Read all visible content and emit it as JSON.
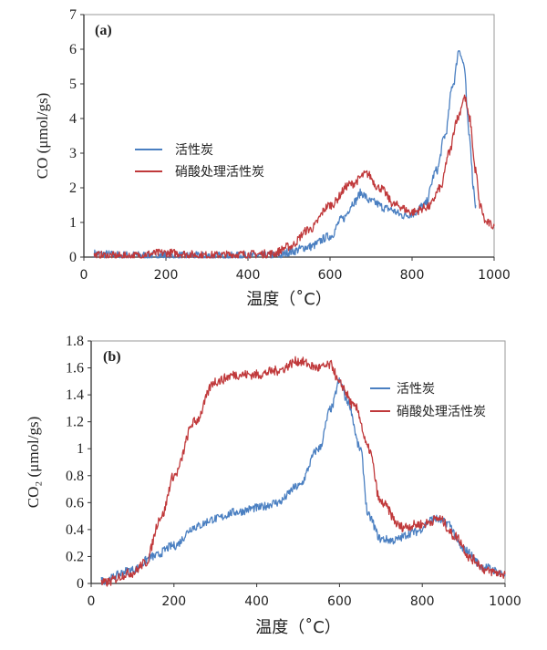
{
  "chart_data": [
    {
      "type": "line",
      "panel_label": "(a)",
      "xlabel": "温度（˚C）",
      "ylabel": "CO (μmol/gs)",
      "xlim": [
        0,
        1000
      ],
      "ylim": [
        0,
        7
      ],
      "xticks": [
        "0",
        "200",
        "400",
        "600",
        "800",
        "1000"
      ],
      "yticks": [
        "0",
        "1",
        "2",
        "3",
        "4",
        "5",
        "6",
        "7"
      ],
      "grid": false,
      "legend_position": "center-left",
      "series": [
        {
          "name": "活性炭",
          "color": "#4a7fc1",
          "x": [
            25,
            100,
            200,
            300,
            400,
            480,
            500,
            550,
            600,
            630,
            660,
            675,
            700,
            740,
            780,
            800,
            830,
            860,
            880,
            900,
            915,
            925,
            940,
            950,
            955
          ],
          "y": [
            0.1,
            0.05,
            0.05,
            0.03,
            0.03,
            0.05,
            0.15,
            0.3,
            0.6,
            1.1,
            1.6,
            1.85,
            1.6,
            1.4,
            1.2,
            1.25,
            1.5,
            2.5,
            3.5,
            5.0,
            6.0,
            5.6,
            3.5,
            2.0,
            1.5
          ]
        },
        {
          "name": "硝酸处理活性炭",
          "color": "#c0393b",
          "x": [
            25,
            100,
            200,
            300,
            400,
            460,
            500,
            550,
            600,
            650,
            690,
            720,
            760,
            800,
            840,
            870,
            890,
            910,
            928,
            940,
            955,
            965,
            980,
            1000
          ],
          "y": [
            0.05,
            0.03,
            0.12,
            0.05,
            0.08,
            0.1,
            0.3,
            0.8,
            1.5,
            2.1,
            2.4,
            2.0,
            1.5,
            1.3,
            1.45,
            2.0,
            3.0,
            4.0,
            4.6,
            4.0,
            2.5,
            1.5,
            1.0,
            0.9
          ]
        }
      ]
    },
    {
      "type": "line",
      "panel_label": "(b)",
      "xlabel": "温度（˚C）",
      "ylabel": "CO₂ (μmol/gs)",
      "xlim": [
        0,
        1000
      ],
      "ylim": [
        0,
        1.8
      ],
      "xticks": [
        "0",
        "200",
        "400",
        "600",
        "800",
        "1000"
      ],
      "yticks": [
        "0",
        "0.2",
        "0.4",
        "0.6",
        "0.8",
        "1",
        "1.2",
        "1.4",
        "1.6",
        "1.8"
      ],
      "grid": false,
      "legend_position": "top-right",
      "series": [
        {
          "name": "活性炭",
          "color": "#4a7fc1",
          "x": [
            25,
            100,
            150,
            200,
            250,
            300,
            350,
            400,
            450,
            500,
            550,
            580,
            600,
            620,
            650,
            670,
            700,
            730,
            780,
            830,
            860,
            900,
            950,
            1000
          ],
          "y": [
            0.02,
            0.1,
            0.2,
            0.28,
            0.42,
            0.48,
            0.53,
            0.56,
            0.6,
            0.72,
            1.0,
            1.3,
            1.5,
            1.35,
            1.0,
            0.5,
            0.33,
            0.32,
            0.38,
            0.48,
            0.45,
            0.25,
            0.12,
            0.07
          ]
        },
        {
          "name": "硝酸处理活性炭",
          "color": "#c0393b",
          "x": [
            25,
            100,
            130,
            170,
            200,
            250,
            300,
            350,
            400,
            450,
            500,
            550,
            580,
            600,
            640,
            670,
            700,
            750,
            800,
            840,
            880,
            920,
            960,
            1000
          ],
          "y": [
            0.0,
            0.08,
            0.15,
            0.5,
            0.8,
            1.2,
            1.5,
            1.55,
            1.55,
            1.58,
            1.65,
            1.6,
            1.62,
            1.48,
            1.3,
            1.0,
            0.6,
            0.42,
            0.44,
            0.48,
            0.35,
            0.18,
            0.09,
            0.07
          ]
        }
      ]
    }
  ]
}
